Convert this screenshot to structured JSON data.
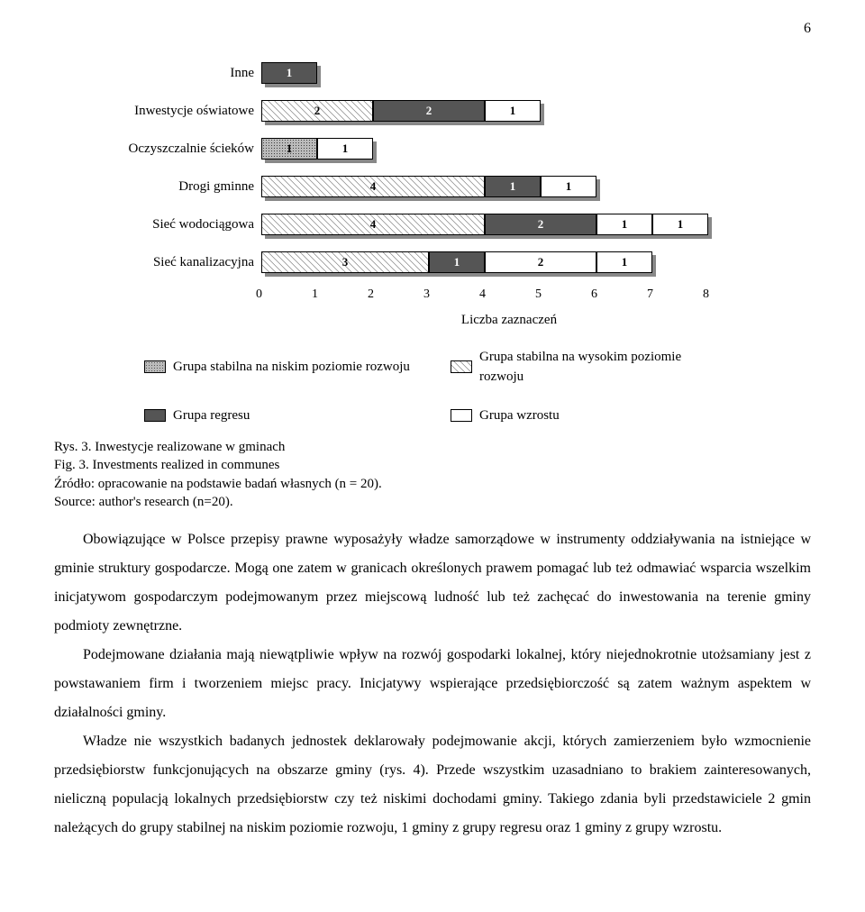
{
  "pageNumber": "6",
  "chart": {
    "type": "stacked-bar-horizontal",
    "unitWidth": 62,
    "xlim": [
      0,
      8
    ],
    "xtick_step": 1,
    "xticks": [
      "0",
      "1",
      "2",
      "3",
      "4",
      "5",
      "6",
      "7",
      "8"
    ],
    "xlabel": "Liczba zaznaczeń",
    "barHeight": 24,
    "shadow_color": "#888888",
    "background_color": "#ffffff",
    "axis_color": "#999999",
    "label_fontsize": 15,
    "value_fontsize": 13,
    "patterns": {
      "s0": "dotted-grid",
      "s1": "diagonal-hatch",
      "s2": "solid-dark",
      "s3": "solid-white"
    },
    "colors": {
      "s0": "#bbbbbb",
      "s0_dot": "#555555",
      "s1": "#ffffff",
      "s1_hatch": "#888888",
      "s2": "#555555",
      "s3": "#ffffff",
      "border": "#000000"
    },
    "categories": [
      {
        "label": "Inne",
        "segments": [
          {
            "series": 2,
            "value": 1
          }
        ]
      },
      {
        "label": "Inwestycje oświatowe",
        "segments": [
          {
            "series": 1,
            "value": 2
          },
          {
            "series": 2,
            "value": 2
          },
          {
            "series": 3,
            "value": 1
          }
        ]
      },
      {
        "label": "Oczyszczalnie ścieków",
        "segments": [
          {
            "series": 0,
            "value": 1
          },
          {
            "series": 3,
            "value": 1
          }
        ]
      },
      {
        "label": "Drogi gminne",
        "segments": [
          {
            "series": 1,
            "value": 4
          },
          {
            "series": 2,
            "value": 1
          },
          {
            "series": 3,
            "value": 1
          }
        ]
      },
      {
        "label": "Sieć wodociągowa",
        "segments": [
          {
            "series": 1,
            "value": 4
          },
          {
            "series": 2,
            "value": 2
          },
          {
            "series": 3,
            "value": 1
          },
          {
            "series": 3,
            "value": 1
          }
        ]
      },
      {
        "label": "Sieć kanalizacyjna",
        "segments": [
          {
            "series": 1,
            "value": 3
          },
          {
            "series": 2,
            "value": 1
          },
          {
            "series": 3,
            "value": 2
          },
          {
            "series": 3,
            "value": 1
          }
        ]
      }
    ],
    "legend": [
      {
        "series": 0,
        "label": "Grupa stabilna na niskim poziomie rozwoju"
      },
      {
        "series": 1,
        "label": "Grupa stabilna na wysokim poziomie rozwoju"
      },
      {
        "series": 2,
        "label": "Grupa regresu"
      },
      {
        "series": 3,
        "label": "Grupa wzrostu"
      }
    ]
  },
  "caption": {
    "line1": "Rys. 3. Inwestycje realizowane w gminach",
    "line2": "Fig. 3. Investments realized in communes",
    "line3": "Źródło: opracowanie na podstawie badań własnych (n = 20).",
    "line4": "Source: author's research (n=20)."
  },
  "paragraphs": [
    "Obowiązujące w Polsce przepisy prawne wyposażyły władze samorządowe w instrumenty oddziaływania na istniejące w gminie struktury gospodarcze. Mogą one zatem w granicach określonych prawem pomagać lub też odmawiać wsparcia wszelkim inicjatywom gospodarczym podejmowanym przez miejscową ludność lub też zachęcać do inwestowania na terenie gminy podmioty zewnętrzne.",
    "Podejmowane działania mają niewątpliwie wpływ na rozwój gospodarki lokalnej, który niejednokrotnie utożsamiany jest z powstawaniem firm i tworzeniem miejsc pracy. Inicjatywy wspierające przedsiębiorczość są zatem ważnym aspektem w działalności gminy.",
    "Władze nie wszystkich badanych jednostek deklarowały podejmowanie akcji, których zamierzeniem było wzmocnienie przedsiębiorstw funkcjonujących na obszarze gminy (rys. 4). Przede wszystkim uzasadniano to brakiem zainteresowanych, nieliczną populacją lokalnych przedsiębiorstw czy też niskimi dochodami gminy. Takiego zdania byli przedstawiciele 2 gmin należących do grupy stabilnej na niskim poziomie rozwoju, 1 gminy z grupy regresu oraz 1 gminy z grupy wzrostu."
  ]
}
